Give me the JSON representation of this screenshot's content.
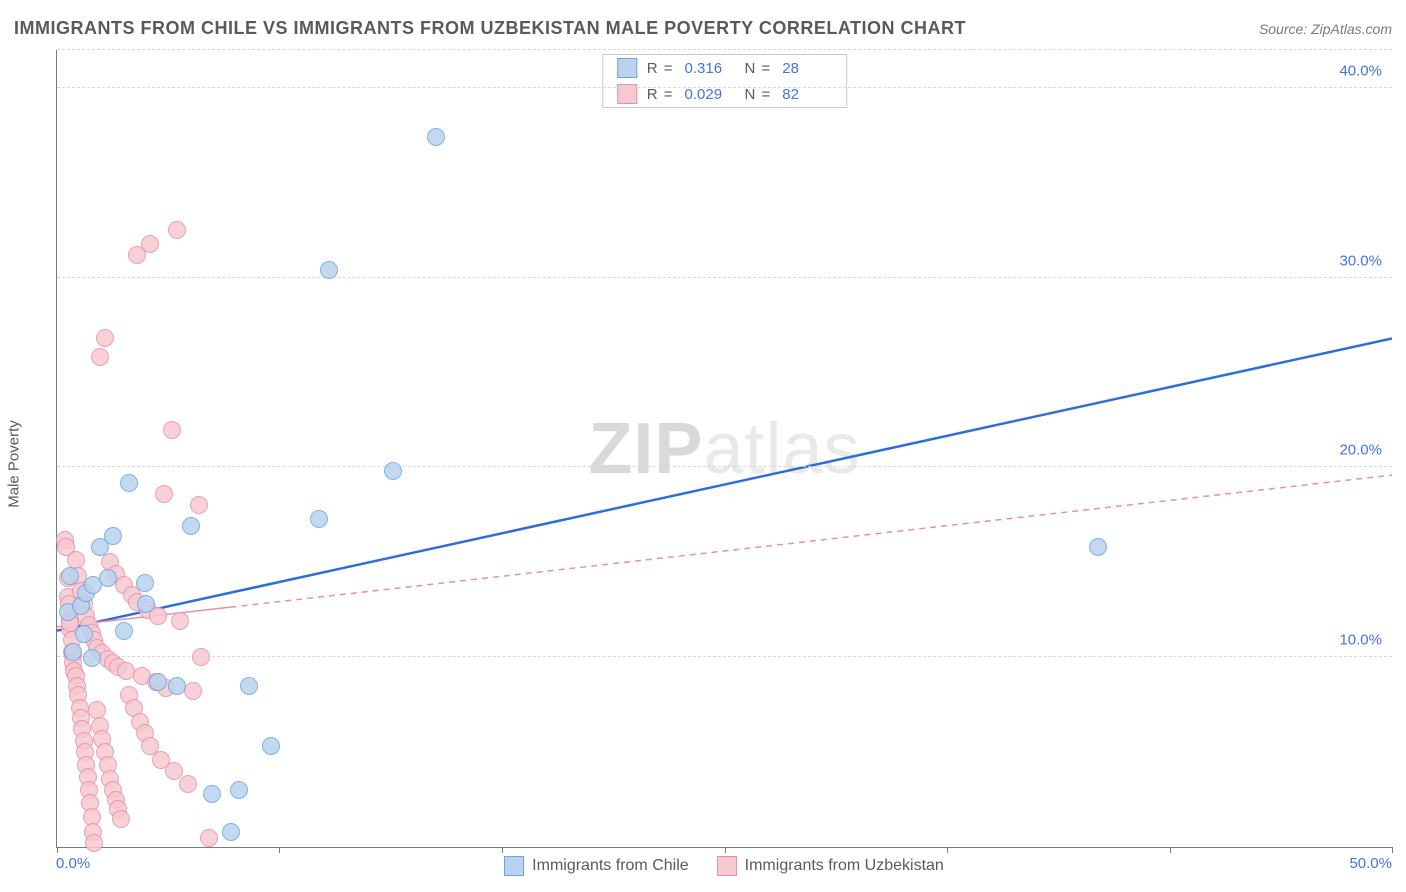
{
  "title": "IMMIGRANTS FROM CHILE VS IMMIGRANTS FROM UZBEKISTAN MALE POVERTY CORRELATION CHART",
  "source": "Source: ZipAtlas.com",
  "y_axis_title": "Male Poverty",
  "watermark_a": "ZIP",
  "watermark_b": "atlas",
  "chart": {
    "plot_bg": "#ffffff",
    "axis_color": "#7a7a7a",
    "grid_color": "#d8d8d8",
    "grid_dash": "4,4",
    "xlim": [
      0,
      50
    ],
    "ylim": [
      0,
      42
    ],
    "x_start_label": "0.0%",
    "x_end_label": "50.0%",
    "x_tick_positions": [
      0,
      8.33,
      16.67,
      25,
      33.33,
      41.67,
      50
    ],
    "y_grid": [
      {
        "y": 10,
        "label": "10.0%"
      },
      {
        "y": 20,
        "label": "20.0%"
      },
      {
        "y": 30,
        "label": "30.0%"
      },
      {
        "y": 40,
        "label": "40.0%"
      },
      {
        "y": 42,
        "label": ""
      }
    ],
    "series": [
      {
        "key": "chile",
        "label": "Immigrants from Chile",
        "fill": "#b9d3ee",
        "stroke": "#6ca5e0",
        "line_color": "#2e6ed8",
        "line_dash": "",
        "line_width": 2.5,
        "r_label": "R",
        "r_value": "0.316",
        "n_label": "N",
        "n_value": "28",
        "trend_solid_end_x": 50,
        "trend": {
          "x1": 0,
          "y1": 11.4,
          "x2": 50,
          "y2": 26.8
        },
        "marker_r": 9,
        "points": [
          [
            0.4,
            12.4
          ],
          [
            0.5,
            14.3
          ],
          [
            0.6,
            10.3
          ],
          [
            0.9,
            12.7
          ],
          [
            1.0,
            11.2
          ],
          [
            1.1,
            13.4
          ],
          [
            1.3,
            9.95
          ],
          [
            1.35,
            13.8
          ],
          [
            1.6,
            15.8
          ],
          [
            1.9,
            14.2
          ],
          [
            2.1,
            16.4
          ],
          [
            2.5,
            11.4
          ],
          [
            2.7,
            19.2
          ],
          [
            3.3,
            13.9
          ],
          [
            3.35,
            12.8
          ],
          [
            3.8,
            8.7
          ],
          [
            4.5,
            8.5
          ],
          [
            5.0,
            16.9
          ],
          [
            5.8,
            2.8
          ],
          [
            6.5,
            0.8
          ],
          [
            6.8,
            3.0
          ],
          [
            7.2,
            8.5
          ],
          [
            8.0,
            5.3
          ],
          [
            9.8,
            17.3
          ],
          [
            10.2,
            30.4
          ],
          [
            12.6,
            19.8
          ],
          [
            14.2,
            37.4
          ],
          [
            39.0,
            15.8
          ]
        ]
      },
      {
        "key": "uzbekistan",
        "label": "Immigrants from Uzbekistan",
        "fill": "#f6c8d2",
        "stroke": "#e890a5",
        "line_color": "#e890a5",
        "line_dash": "6,5",
        "line_width": 1.5,
        "r_label": "R",
        "r_value": "0.029",
        "n_label": "N",
        "n_value": "82",
        "trend_solid_end_x": 6.5,
        "trend": {
          "x1": 0,
          "y1": 11.6,
          "x2": 50,
          "y2": 19.6
        },
        "marker_r": 9,
        "points": [
          [
            0.3,
            16.2
          ],
          [
            0.35,
            15.8
          ],
          [
            0.4,
            14.2
          ],
          [
            0.4,
            13.2
          ],
          [
            0.45,
            12.8
          ],
          [
            0.5,
            12.0
          ],
          [
            0.5,
            11.5
          ],
          [
            0.5,
            11.8
          ],
          [
            0.55,
            10.9
          ],
          [
            0.55,
            10.3
          ],
          [
            0.6,
            10.1
          ],
          [
            0.6,
            9.7
          ],
          [
            0.65,
            9.3
          ],
          [
            0.7,
            9.0
          ],
          [
            0.7,
            15.1
          ],
          [
            0.75,
            8.5
          ],
          [
            0.8,
            8.0
          ],
          [
            0.8,
            14.3
          ],
          [
            0.85,
            7.3
          ],
          [
            0.9,
            6.8
          ],
          [
            0.9,
            13.5
          ],
          [
            0.95,
            6.2
          ],
          [
            1.0,
            5.6
          ],
          [
            1.0,
            12.8
          ],
          [
            1.05,
            5.0
          ],
          [
            1.1,
            4.3
          ],
          [
            1.1,
            12.2
          ],
          [
            1.15,
            3.7
          ],
          [
            1.2,
            3.0
          ],
          [
            1.2,
            11.7
          ],
          [
            1.25,
            2.3
          ],
          [
            1.3,
            1.6
          ],
          [
            1.3,
            11.3
          ],
          [
            1.35,
            0.8
          ],
          [
            1.4,
            0.2
          ],
          [
            1.4,
            10.9
          ],
          [
            1.5,
            7.2
          ],
          [
            1.5,
            10.5
          ],
          [
            1.6,
            6.4
          ],
          [
            1.6,
            25.8
          ],
          [
            1.7,
            5.7
          ],
          [
            1.7,
            10.2
          ],
          [
            1.8,
            5.0
          ],
          [
            1.8,
            26.8
          ],
          [
            1.9,
            4.3
          ],
          [
            1.9,
            9.9
          ],
          [
            2.0,
            3.6
          ],
          [
            2.0,
            15.0
          ],
          [
            2.1,
            3.0
          ],
          [
            2.1,
            9.7
          ],
          [
            2.2,
            2.5
          ],
          [
            2.2,
            14.4
          ],
          [
            2.3,
            2.0
          ],
          [
            2.3,
            9.5
          ],
          [
            2.4,
            1.5
          ],
          [
            2.5,
            13.8
          ],
          [
            2.6,
            9.3
          ],
          [
            2.7,
            8.0
          ],
          [
            2.8,
            13.3
          ],
          [
            2.9,
            7.3
          ],
          [
            3.0,
            31.2
          ],
          [
            3.0,
            12.9
          ],
          [
            3.1,
            6.6
          ],
          [
            3.2,
            9.0
          ],
          [
            3.3,
            6.0
          ],
          [
            3.4,
            12.5
          ],
          [
            3.5,
            5.3
          ],
          [
            3.5,
            31.8
          ],
          [
            3.7,
            8.7
          ],
          [
            3.8,
            12.2
          ],
          [
            3.9,
            4.6
          ],
          [
            4.0,
            18.6
          ],
          [
            4.1,
            8.4
          ],
          [
            4.3,
            22.0
          ],
          [
            4.4,
            4.0
          ],
          [
            4.5,
            32.5
          ],
          [
            4.6,
            11.9
          ],
          [
            4.9,
            3.3
          ],
          [
            5.1,
            8.2
          ],
          [
            5.3,
            18.0
          ],
          [
            5.4,
            10.0
          ],
          [
            5.7,
            0.5
          ]
        ]
      }
    ]
  },
  "colors": {
    "title": "#5a5a5a",
    "source": "#7a7a7a",
    "tick_label": "#4472e4",
    "legend_text": "#5a5a5a",
    "legend_val": "#4472e4",
    "legend_border": "#c9c9c9"
  }
}
